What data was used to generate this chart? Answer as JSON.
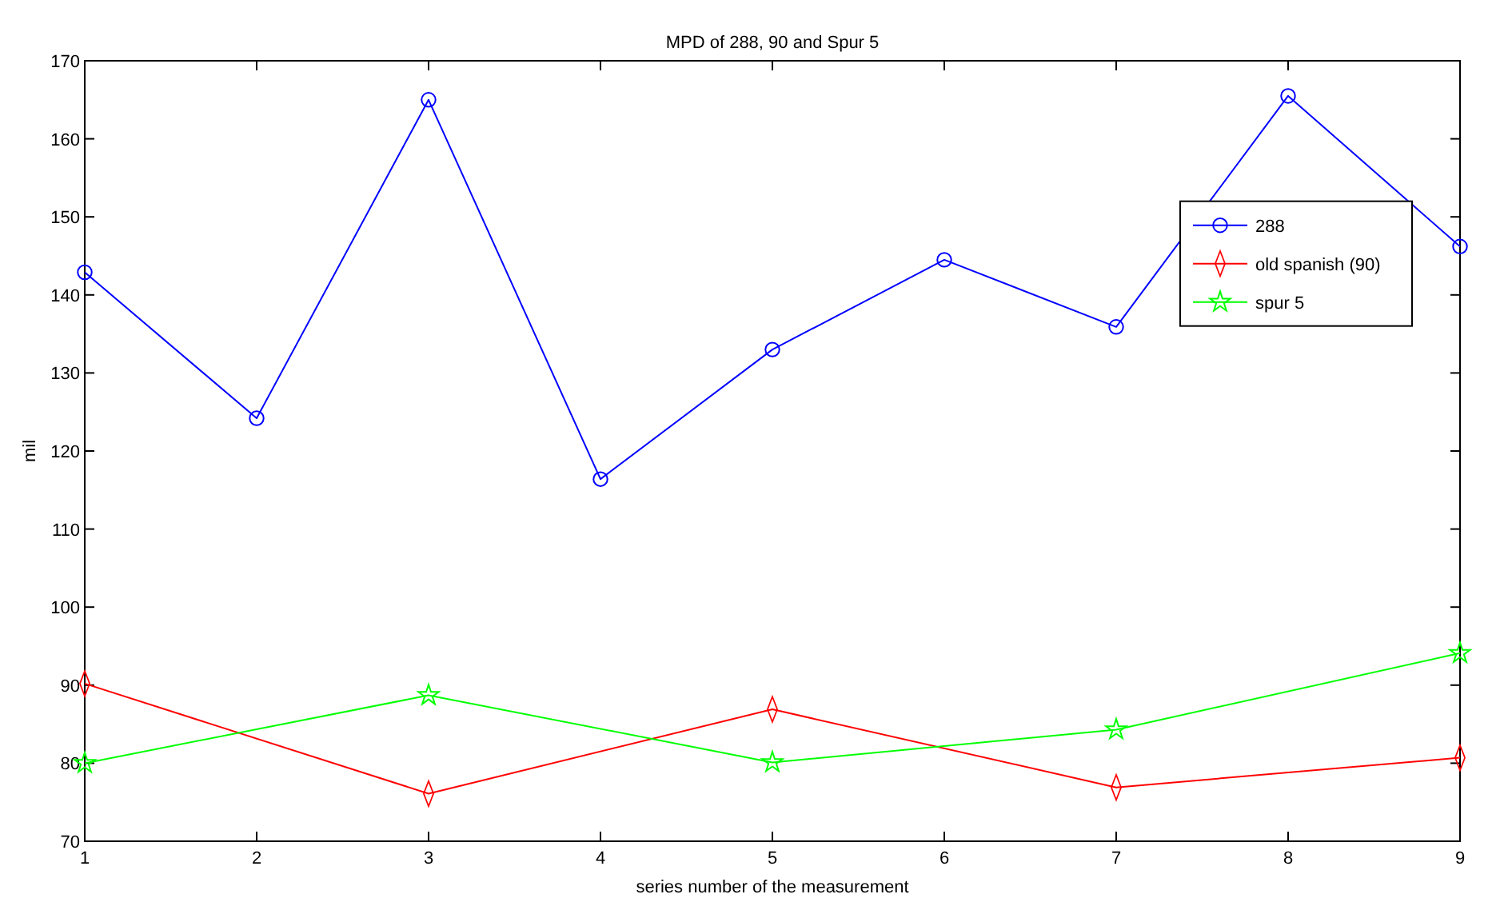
{
  "chart_data": {
    "type": "line",
    "title": "MPD of 288, 90 and Spur 5",
    "xlabel": "series number of the measurement",
    "ylabel": "mil",
    "x": [
      1,
      2,
      3,
      4,
      5,
      6,
      7,
      8,
      9
    ],
    "xlim": [
      1,
      9
    ],
    "xticks": [
      1,
      2,
      3,
      4,
      5,
      6,
      7,
      8,
      9
    ],
    "ylim": [
      70,
      170
    ],
    "yticks": [
      70,
      80,
      90,
      100,
      110,
      120,
      130,
      140,
      150,
      160,
      170
    ],
    "grid": false,
    "legend": "top right",
    "line_style": "solid",
    "series": [
      {
        "name": "288",
        "color": "#0000ff",
        "marker": "circle",
        "values": [
          142.9,
          124.2,
          165.0,
          116.4,
          133.0,
          144.5,
          135.9,
          165.5,
          146.2
        ]
      },
      {
        "name": "old spanish (90)",
        "color": "#ff0000",
        "marker": "diamond",
        "x": [
          1,
          3,
          5,
          7,
          9
        ],
        "values": [
          90.2,
          76.1,
          86.9,
          76.9,
          80.7
        ]
      },
      {
        "name": "spur 5",
        "color": "#00ff00",
        "marker": "star",
        "x": [
          1,
          3,
          5,
          7,
          9
        ],
        "values": [
          80.0,
          88.7,
          80.1,
          84.3,
          94.1
        ]
      }
    ]
  }
}
